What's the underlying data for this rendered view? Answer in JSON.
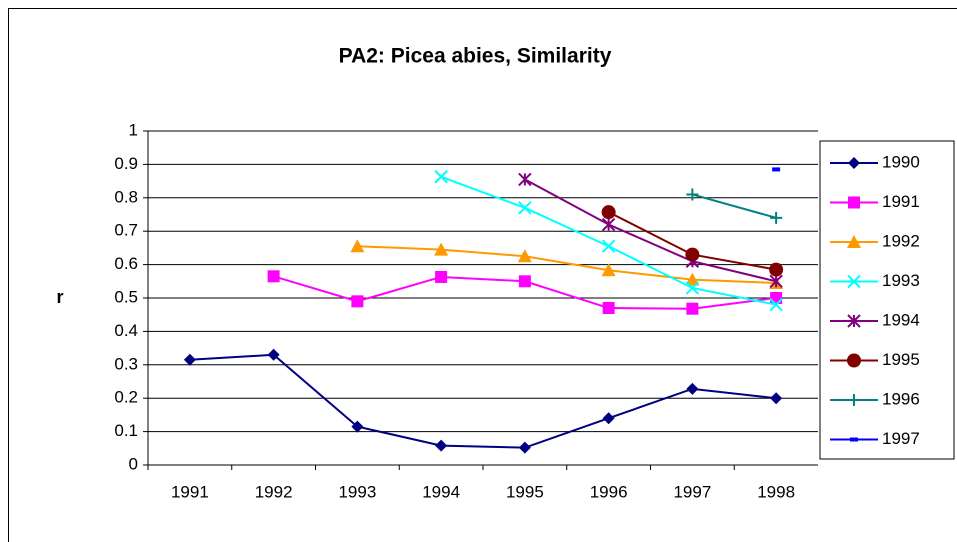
{
  "chart_data": {
    "type": "line",
    "title": "PA2: Picea abies, Similarity",
    "y_label": "r",
    "categories": [
      "1991",
      "1992",
      "1993",
      "1994",
      "1995",
      "1996",
      "1997",
      "1998"
    ],
    "ylim": [
      0,
      1
    ],
    "yticks": [
      0,
      0.1,
      0.2,
      0.3,
      0.4,
      0.5,
      0.6,
      0.7,
      0.8,
      0.9,
      1
    ],
    "grid": true,
    "legend": "right",
    "series": [
      {
        "name": "1990",
        "color": "#000080",
        "marker": "diamond",
        "values": [
          0.315,
          0.33,
          0.115,
          0.058,
          0.052,
          0.14,
          0.228,
          0.2
        ]
      },
      {
        "name": "1991",
        "color": "#ff00ff",
        "marker": "square",
        "values": [
          null,
          0.565,
          0.49,
          0.563,
          0.55,
          0.47,
          0.468,
          0.5
        ]
      },
      {
        "name": "1992",
        "color": "#ff9900",
        "marker": "triangle",
        "values": [
          null,
          null,
          0.655,
          0.645,
          0.625,
          0.583,
          0.555,
          0.545
        ]
      },
      {
        "name": "1993",
        "color": "#00ffff",
        "marker": "x",
        "values": [
          null,
          null,
          null,
          0.863,
          0.77,
          0.655,
          0.53,
          0.48
        ]
      },
      {
        "name": "1994",
        "color": "#800080",
        "marker": "star",
        "values": [
          null,
          null,
          null,
          null,
          0.855,
          0.72,
          0.61,
          0.55
        ]
      },
      {
        "name": "1995",
        "color": "#800000",
        "marker": "circle",
        "values": [
          null,
          null,
          null,
          null,
          null,
          0.757,
          0.63,
          0.585
        ]
      },
      {
        "name": "1996",
        "color": "#008080",
        "marker": "plus",
        "values": [
          null,
          null,
          null,
          null,
          null,
          null,
          0.81,
          0.74
        ]
      },
      {
        "name": "1997",
        "color": "#0000ff",
        "marker": "dash",
        "values": [
          null,
          null,
          null,
          null,
          null,
          null,
          null,
          0.885
        ]
      }
    ]
  }
}
